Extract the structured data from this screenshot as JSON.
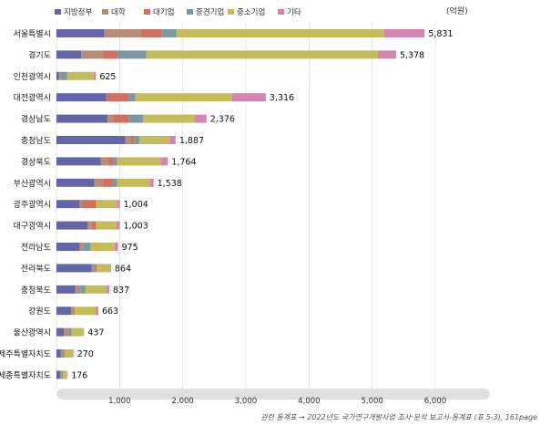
{
  "chart_data": {
    "type": "bar",
    "orientation": "horizontal",
    "stacked": true,
    "unit": "(억원)",
    "legend_position": "top",
    "categories": [
      "서울특별시",
      "경기도",
      "인천광역시",
      "대전광역시",
      "경상남도",
      "충청남도",
      "경상북도",
      "부산광역시",
      "광주광역시",
      "대구광역시",
      "전라남도",
      "전라북도",
      "충청북도",
      "강원도",
      "울산광역시",
      "제주특별자치도",
      "세종특별자치도"
    ],
    "totals": [
      "5,831",
      "5,378",
      "625",
      "3,316",
      "2,376",
      "1,887",
      "1,764",
      "1,538",
      "1,004",
      "1,003",
      "975",
      "864",
      "837",
      "663",
      "437",
      "270",
      "176"
    ],
    "series": [
      {
        "name": "지방정부",
        "color": "#6366a6",
        "values": [
          760,
          390,
          40,
          790,
          810,
          1090,
          700,
          600,
          370,
          490,
          370,
          560,
          300,
          230,
          120,
          70,
          60
        ]
      },
      {
        "name": "대학",
        "color": "#b68c76",
        "values": [
          580,
          340,
          40,
          0,
          90,
          80,
          120,
          130,
          40,
          70,
          60,
          60,
          80,
          60,
          70,
          60,
          20
        ]
      },
      {
        "name": "대기업",
        "color": "#d0705f",
        "values": [
          330,
          230,
          0,
          350,
          250,
          60,
          80,
          150,
          220,
          70,
          0,
          0,
          0,
          0,
          0,
          0,
          0
        ]
      },
      {
        "name": "중견기업",
        "color": "#7a98a2",
        "values": [
          230,
          460,
          90,
          110,
          220,
          80,
          60,
          80,
          0,
          0,
          110,
          20,
          80,
          0,
          50,
          0,
          20
        ]
      },
      {
        "name": "중소기업",
        "color": "#c4bc5a",
        "values": [
          3290,
          3670,
          420,
          1530,
          830,
          480,
          690,
          520,
          330,
          320,
          380,
          210,
          330,
          330,
          190,
          130,
          70
        ]
      },
      {
        "name": "기타",
        "color": "#d484b0",
        "values": [
          641,
          288,
          35,
          536,
          176,
          97,
          114,
          58,
          44,
          53,
          55,
          14,
          47,
          43,
          7,
          10,
          6
        ]
      }
    ],
    "xlim": [
      0,
      6000
    ],
    "xticks": [
      1000,
      2000,
      3000,
      4000,
      5000,
      6000
    ],
    "xtick_labels": [
      "1,000",
      "2,000",
      "3,000",
      "4,000",
      "5,000",
      "6,000"
    ],
    "grid": true
  },
  "source_note": "관련 통계표 → 2022년도 국가연구개발사업 조사·분석 보고서-통계표 (표 5-3), 161page"
}
